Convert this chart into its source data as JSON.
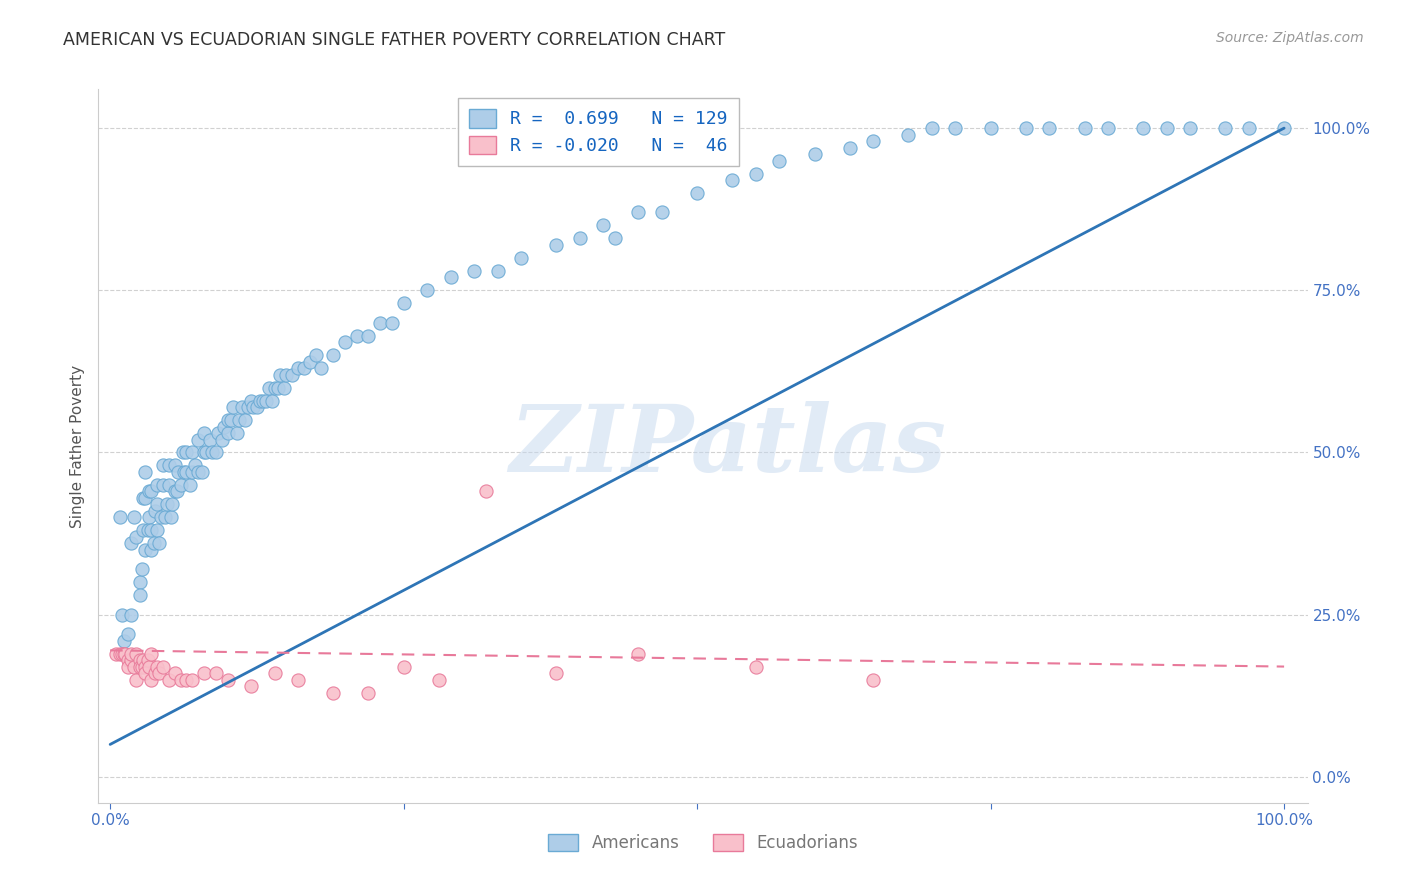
{
  "title": "AMERICAN VS ECUADORIAN SINGLE FATHER POVERTY CORRELATION CHART",
  "source": "Source: ZipAtlas.com",
  "ylabel": "Single Father Poverty",
  "american_R": 0.699,
  "american_N": 129,
  "ecuadorian_R": -0.02,
  "ecuadorian_N": 46,
  "american_color": "#AECDE8",
  "american_edge_color": "#6AAAD4",
  "ecuadorian_color": "#F9C0CB",
  "ecuadorian_edge_color": "#E87A9A",
  "trendline_american_color": "#2E75B6",
  "trendline_ecuadorian_color": "#E8799A",
  "watermark_text": "ZIPatlas",
  "background_color": "#FFFFFF",
  "grid_color": "#CCCCCC",
  "title_color": "#333333",
  "tick_label_color": "#4472C4",
  "legend_R_color": "#1565C0",
  "legend_border_color": "#BBBBBB",
  "american_scatter_x": [
    0.008,
    0.01,
    0.012,
    0.015,
    0.018,
    0.018,
    0.02,
    0.022,
    0.025,
    0.025,
    0.027,
    0.028,
    0.028,
    0.03,
    0.03,
    0.03,
    0.032,
    0.033,
    0.033,
    0.035,
    0.035,
    0.035,
    0.037,
    0.038,
    0.04,
    0.04,
    0.04,
    0.042,
    0.043,
    0.045,
    0.045,
    0.047,
    0.048,
    0.05,
    0.05,
    0.052,
    0.053,
    0.055,
    0.055,
    0.057,
    0.058,
    0.06,
    0.062,
    0.063,
    0.065,
    0.065,
    0.068,
    0.07,
    0.07,
    0.072,
    0.075,
    0.075,
    0.078,
    0.08,
    0.08,
    0.082,
    0.085,
    0.087,
    0.09,
    0.092,
    0.095,
    0.097,
    0.1,
    0.1,
    0.103,
    0.105,
    0.108,
    0.11,
    0.112,
    0.115,
    0.117,
    0.12,
    0.122,
    0.125,
    0.128,
    0.13,
    0.133,
    0.135,
    0.138,
    0.14,
    0.143,
    0.145,
    0.148,
    0.15,
    0.155,
    0.16,
    0.165,
    0.17,
    0.175,
    0.18,
    0.19,
    0.2,
    0.21,
    0.22,
    0.23,
    0.24,
    0.25,
    0.27,
    0.29,
    0.31,
    0.33,
    0.35,
    0.38,
    0.4,
    0.42,
    0.43,
    0.45,
    0.47,
    0.5,
    0.53,
    0.55,
    0.57,
    0.6,
    0.63,
    0.65,
    0.68,
    0.7,
    0.72,
    0.75,
    0.78,
    0.8,
    0.83,
    0.85,
    0.88,
    0.9,
    0.92,
    0.95,
    0.97,
    1.0
  ],
  "american_scatter_y": [
    0.4,
    0.25,
    0.21,
    0.22,
    0.36,
    0.25,
    0.4,
    0.37,
    0.3,
    0.28,
    0.32,
    0.38,
    0.43,
    0.35,
    0.43,
    0.47,
    0.38,
    0.4,
    0.44,
    0.35,
    0.38,
    0.44,
    0.36,
    0.41,
    0.42,
    0.38,
    0.45,
    0.36,
    0.4,
    0.45,
    0.48,
    0.4,
    0.42,
    0.45,
    0.48,
    0.4,
    0.42,
    0.44,
    0.48,
    0.44,
    0.47,
    0.45,
    0.5,
    0.47,
    0.5,
    0.47,
    0.45,
    0.47,
    0.5,
    0.48,
    0.47,
    0.52,
    0.47,
    0.5,
    0.53,
    0.5,
    0.52,
    0.5,
    0.5,
    0.53,
    0.52,
    0.54,
    0.53,
    0.55,
    0.55,
    0.57,
    0.53,
    0.55,
    0.57,
    0.55,
    0.57,
    0.58,
    0.57,
    0.57,
    0.58,
    0.58,
    0.58,
    0.6,
    0.58,
    0.6,
    0.6,
    0.62,
    0.6,
    0.62,
    0.62,
    0.63,
    0.63,
    0.64,
    0.65,
    0.63,
    0.65,
    0.67,
    0.68,
    0.68,
    0.7,
    0.7,
    0.73,
    0.75,
    0.77,
    0.78,
    0.78,
    0.8,
    0.82,
    0.83,
    0.85,
    0.83,
    0.87,
    0.87,
    0.9,
    0.92,
    0.93,
    0.95,
    0.96,
    0.97,
    0.98,
    0.99,
    1.0,
    1.0,
    1.0,
    1.0,
    1.0,
    1.0,
    1.0,
    1.0,
    1.0,
    1.0,
    1.0,
    1.0,
    1.0
  ],
  "ecuadorian_scatter_x": [
    0.005,
    0.008,
    0.01,
    0.012,
    0.013,
    0.015,
    0.015,
    0.018,
    0.018,
    0.02,
    0.022,
    0.022,
    0.025,
    0.025,
    0.027,
    0.028,
    0.03,
    0.03,
    0.032,
    0.033,
    0.035,
    0.035,
    0.038,
    0.04,
    0.042,
    0.045,
    0.05,
    0.055,
    0.06,
    0.065,
    0.07,
    0.08,
    0.09,
    0.1,
    0.12,
    0.14,
    0.16,
    0.19,
    0.22,
    0.25,
    0.28,
    0.32,
    0.38,
    0.45,
    0.55,
    0.65
  ],
  "ecuadorian_scatter_y": [
    0.19,
    0.19,
    0.19,
    0.19,
    0.19,
    0.18,
    0.17,
    0.18,
    0.19,
    0.17,
    0.19,
    0.15,
    0.18,
    0.17,
    0.17,
    0.18,
    0.17,
    0.16,
    0.18,
    0.17,
    0.19,
    0.15,
    0.16,
    0.17,
    0.16,
    0.17,
    0.15,
    0.16,
    0.15,
    0.15,
    0.15,
    0.16,
    0.16,
    0.15,
    0.14,
    0.16,
    0.15,
    0.13,
    0.13,
    0.17,
    0.15,
    0.44,
    0.16,
    0.19,
    0.17,
    0.15
  ],
  "american_trendline_x": [
    0.0,
    1.0
  ],
  "american_trendline_y": [
    0.05,
    1.0
  ],
  "ecuadorian_trendline_x": [
    0.0,
    1.0
  ],
  "ecuadorian_trendline_y": [
    0.195,
    0.17
  ],
  "ytick_positions": [
    0.0,
    0.25,
    0.5,
    0.75,
    1.0
  ],
  "ytick_labels": [
    "0.0%",
    "25.0%",
    "50.0%",
    "75.0%",
    "100.0%"
  ],
  "xtick_positions": [
    0.0,
    0.25,
    0.5,
    0.75,
    1.0
  ],
  "xtick_labels": [
    "0.0%",
    "",
    "",
    "",
    "100.0%"
  ]
}
